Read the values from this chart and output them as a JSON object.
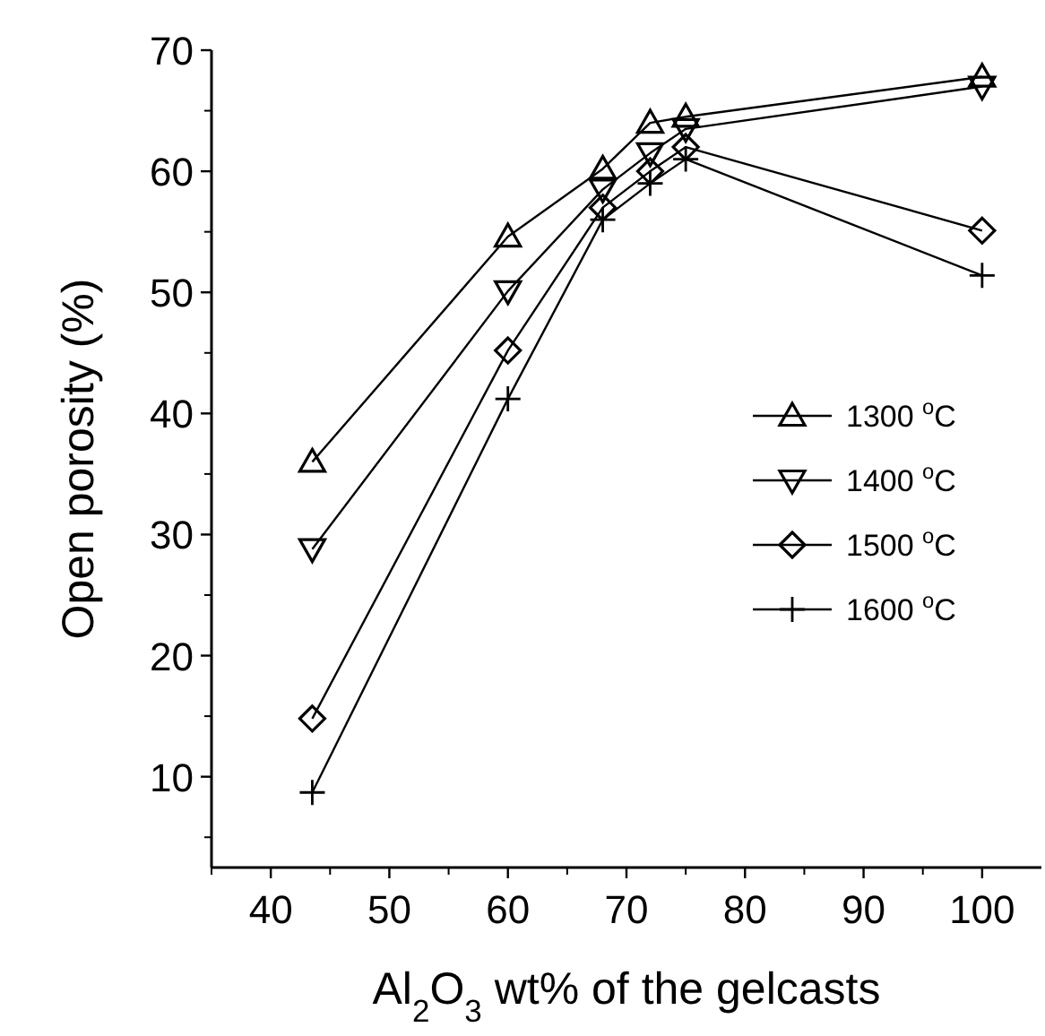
{
  "chart_data": {
    "type": "line",
    "xlabel": "Al$_{2}$O$_{3}$ wt% of the gelcasts",
    "ylabel": "Open porosity (%)",
    "x": [
      43.5,
      60,
      68,
      72,
      75,
      100
    ],
    "xlim": [
      35,
      105
    ],
    "xticks": [
      40,
      50,
      60,
      70,
      80,
      90,
      100
    ],
    "ylim": [
      2.5,
      70
    ],
    "yticks": [
      10,
      20,
      30,
      40,
      50,
      60,
      70
    ],
    "legend": "right",
    "grid": false,
    "line_style": "solid",
    "series": [
      {
        "name": "1300 $^{o}$C",
        "color": "#000000",
        "marker": "triangle",
        "values": [
          36.0,
          54.6,
          60.2,
          64.0,
          64.5,
          67.8
        ]
      },
      {
        "name": "1400 $^{o}$C",
        "color": "#000000",
        "marker": "triangle-down",
        "values": [
          28.8,
          50.1,
          58.5,
          61.5,
          63.5,
          67.0
        ]
      },
      {
        "name": "1500 $^{o}$C",
        "color": "#000000",
        "marker": "diamond",
        "values": [
          14.8,
          45.2,
          57.0,
          60.0,
          62.0,
          55.1
        ]
      },
      {
        "name": "1600 $^{o}$C",
        "color": "#000000",
        "marker": "cross",
        "values": [
          8.7,
          41.2,
          56.0,
          59.0,
          61.0,
          51.4
        ]
      }
    ]
  }
}
